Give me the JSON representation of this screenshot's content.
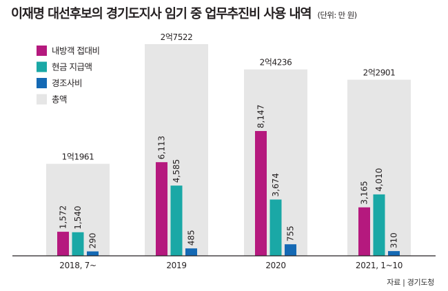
{
  "title": "이재명 대선후보의 경기도지사 임기 중 업무추진비 사용 내역",
  "unit": "(단위: 만 원)",
  "source": "자료 | 경기도청",
  "colors": {
    "series": [
      "#b5197e",
      "#1aa8a6",
      "#1469b4"
    ],
    "total_box": "#e6e6e6",
    "baseline": "#231f20"
  },
  "chart_data": {
    "type": "bar",
    "categories": [
      "2018, 7~",
      "2019",
      "2020",
      "2021, 1~10"
    ],
    "series": [
      {
        "name": "내방객 접대비",
        "values": [
          1572,
          6113,
          8147,
          3165
        ],
        "labels": [
          "1,572",
          "6,113",
          "8,147",
          "3,165"
        ]
      },
      {
        "name": "현금 지급액",
        "values": [
          1540,
          4585,
          3674,
          4010
        ],
        "labels": [
          "1,540",
          "4,585",
          "3,674",
          "4,010"
        ]
      },
      {
        "name": "경조사비",
        "values": [
          290,
          485,
          755,
          310
        ],
        "labels": [
          "290",
          "485",
          "755",
          "310"
        ]
      }
    ],
    "totals": {
      "name": "총액",
      "values": [
        11961,
        27522,
        24236,
        22901
      ],
      "labels": [
        "1억1961",
        "2억7522",
        "2억4236",
        "2억2901"
      ]
    },
    "ylim": [
      0,
      30000
    ],
    "legend_position": "top-left",
    "grid": false
  }
}
